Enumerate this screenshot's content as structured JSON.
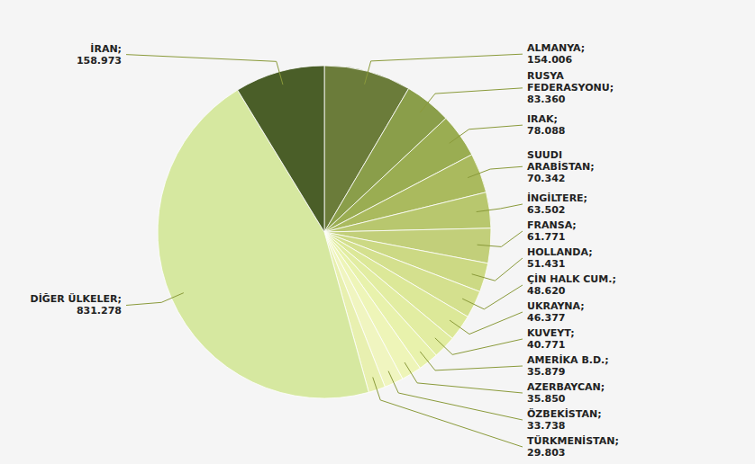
{
  "chart_data": {
    "type": "pie",
    "categories": [
      "ALMANYA;",
      "RUSYA\nFEDERASYONU;",
      "IRAK;",
      "SUUDI\nARABİSTAN;",
      "İNGİLTERE;",
      "FRANSA;",
      "HOLLANDA;",
      "ÇİN HALK CUM.;",
      "UKRAYNA;",
      "KUVEYT;",
      "AMERİKA B.D.;",
      "AZERBAYCAN;",
      "ÖZBEKİSTAN;",
      "TÜRKMENİSTAN;",
      "DİĞER ÜLKELER;",
      "İRAN;"
    ],
    "values": [
      154006,
      83360,
      78088,
      70342,
      63502,
      61771,
      51431,
      48620,
      46377,
      40771,
      35879,
      35850,
      33738,
      29803,
      831278,
      158973
    ],
    "value_labels": [
      "154.006",
      "83.360",
      "78.088",
      "70.342",
      "63.502",
      "61.771",
      "51.431",
      "48.620",
      "46.377",
      "40.771",
      "35.879",
      "35.850",
      "33.738",
      "29.803",
      "831.278",
      "158.973"
    ],
    "colors": [
      "#6b7c3a",
      "#8a9e4a",
      "#9aad52",
      "#aaba5e",
      "#b8c76e",
      "#c2cf7a",
      "#ccd984",
      "#d4e08e",
      "#dce898",
      "#e2eda2",
      "#e8f2ac",
      "#eef5b8",
      "#f0f5c0",
      "#e8f0b0",
      "#d6e8a0",
      "#4a5e28"
    ],
    "data_labels": true
  }
}
